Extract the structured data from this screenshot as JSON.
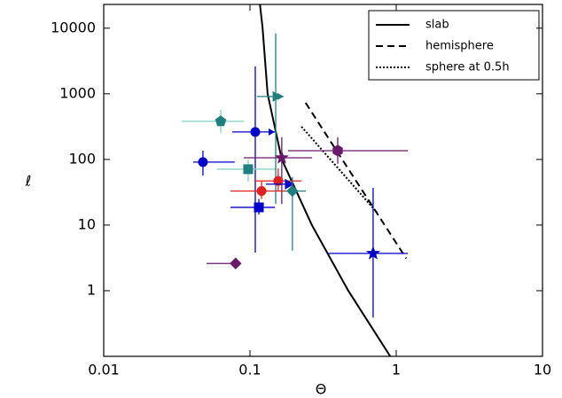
{
  "chart_data": {
    "type": "scatter",
    "xlabel": "Θ",
    "ylabel": "ℓ",
    "xscale": "log",
    "yscale": "log",
    "xlim": [
      0.01,
      10
    ],
    "ylim": [
      0.1,
      23000
    ],
    "xticks": [
      0.01,
      0.1,
      1,
      10
    ],
    "yticks": [
      1,
      10,
      100,
      1000,
      10000
    ],
    "legend": "upper right",
    "lines": [
      {
        "name": "slab",
        "style": "solid",
        "color": "#000000",
        "x": [
          0.117,
          0.122,
          0.132,
          0.165,
          0.265,
          0.47,
          0.91
        ],
        "y": [
          23000,
          10000,
          1000,
          100,
          10,
          1,
          0.1
        ]
      },
      {
        "name": "hemisphere",
        "style": "dashed",
        "color": "#000000",
        "x": [
          0.24,
          1.17
        ],
        "y": [
          730,
          3.1
        ]
      },
      {
        "name": "sphere at 0.5h",
        "style": "dotted",
        "color": "#000000",
        "x": [
          0.225,
          0.74
        ],
        "y": [
          316,
          15.5
        ]
      }
    ],
    "points": [
      {
        "marker": "pentagon",
        "color": "#1f7f7f",
        "ecolor": "#80cfc0",
        "x": 0.0631,
        "y": 381,
        "xerr": [
          0.0341,
          0.0907
        ],
        "yerr": [
          254,
          571
        ]
      },
      {
        "marker": "circle",
        "color": "#0000cc",
        "ecolor": "#0000cc",
        "x": 0.1087,
        "y": 262,
        "xerr": [
          0.0757,
          0.148
        ],
        "x_arrow": true,
        "yerr": [
          3.8,
          2620
        ]
      },
      {
        "marker": "circle",
        "color": "#0000cc",
        "ecolor": "#0000cc",
        "x": 0.0477,
        "y": 91,
        "xerr": [
          0.0409,
          0.0787
        ],
        "yerr": [
          57,
          136
        ]
      },
      {
        "marker": "square",
        "color": "#1f7f7f",
        "ecolor": "#80cfc0",
        "x": 0.0972,
        "y": 71,
        "xerr": [
          0.0597,
          0.152
        ],
        "yerr": [
          46,
          100
        ]
      },
      {
        "marker": "triangle-right",
        "color": "#1f7f7f",
        "ecolor": "#1f7f7f",
        "x": 0.15,
        "y": 910,
        "xerr": [
          0.1117,
          0.17
        ],
        "x_arrow": true,
        "yerr": [
          21,
          8300
        ]
      },
      {
        "marker": "star",
        "color": "#6a1a6a",
        "ecolor": "#6a1a6a",
        "x": 0.165,
        "y": 106,
        "xerr": [
          0.0907,
          0.266
        ],
        "yerr": [
          21,
          218
        ]
      },
      {
        "marker": "hexagon",
        "color": "#6a1a6a",
        "ecolor": "#6a1a6a",
        "x": 0.398,
        "y": 136,
        "xerr": [
          0.182,
          1.2
        ],
        "yerr": [
          86,
          218
        ]
      },
      {
        "marker": "circle",
        "color": "#e02020",
        "ecolor": "#e02020",
        "x": 0.156,
        "y": 47,
        "xerr": [
          0.107,
          0.225
        ],
        "yerr": [
          33,
          73
        ]
      },
      {
        "marker": "circle",
        "color": "#e02020",
        "ecolor": "#e02020",
        "x": 0.12,
        "y": 33,
        "xerr": [
          0.0736,
          0.195
        ],
        "yerr": [
          25,
          46
        ]
      },
      {
        "marker": "triangle-right",
        "color": "#0000cc",
        "ecolor": "#0000cc",
        "x": 0.182,
        "y": 42,
        "xerr": [
          0.1285,
          0.195
        ],
        "x_arrow": true
      },
      {
        "marker": "diamond",
        "color": "#1f7f7f",
        "ecolor": "#1f7f7f",
        "x": 0.195,
        "y": 33,
        "xerr": [
          0.175,
          0.241
        ],
        "yerr": [
          4.1,
          54
        ]
      },
      {
        "marker": "square",
        "color": "#0000cc",
        "ecolor": "#0000cc",
        "x": 0.115,
        "y": 18.6,
        "xerr": [
          0.0736,
          0.148
        ],
        "yerr": [
          14.5,
          25
        ]
      },
      {
        "marker": "star",
        "color": "#0000cc",
        "ecolor": "#0000cc",
        "x": 0.695,
        "y": 3.7,
        "xerr": [
          0.341,
          1.2
        ],
        "yerr": [
          0.39,
          37
        ]
      },
      {
        "marker": "diamond",
        "color": "#6a1a6a",
        "ecolor": "#6a1a6a",
        "x": 0.0798,
        "y": 2.6,
        "xerr": [
          0.0505,
          0.081
        ]
      }
    ]
  }
}
